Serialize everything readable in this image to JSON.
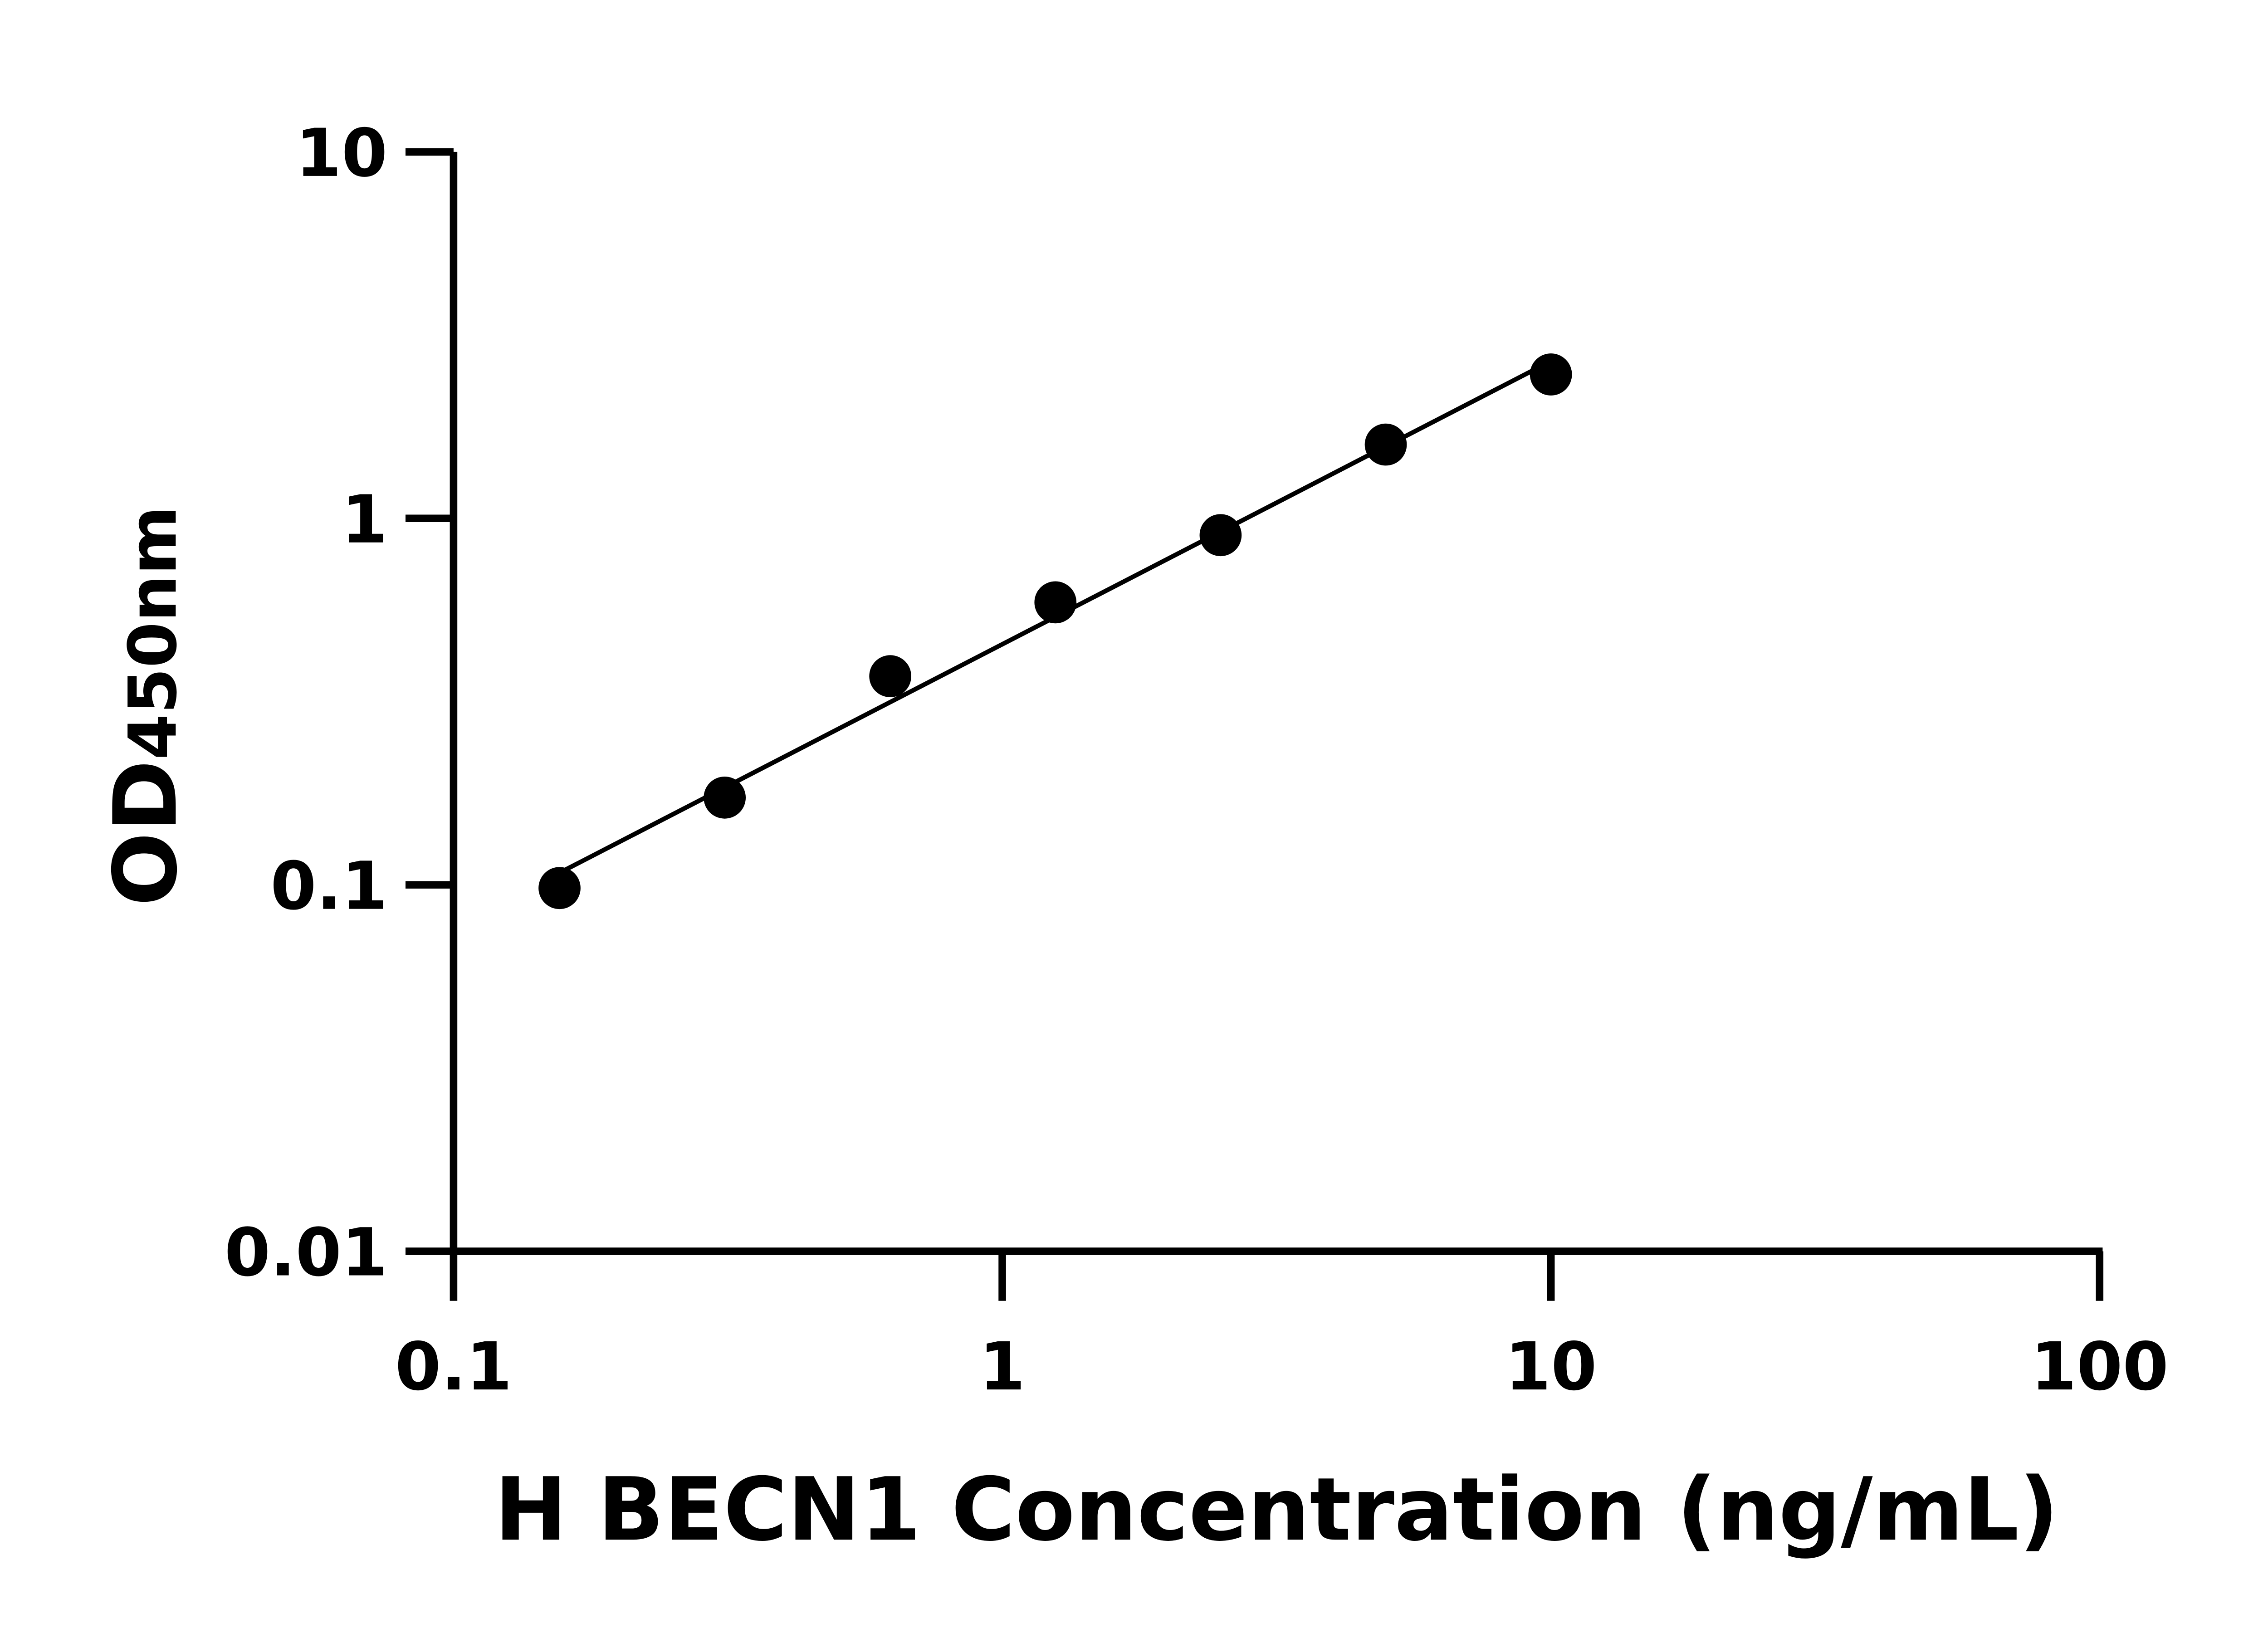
{
  "chart_data": {
    "type": "scatter",
    "title": "",
    "xlabel": "H BECN1 Concentration (ng/mL)",
    "ylabel_main": "OD",
    "ylabel_sub": "450nm",
    "x_scale": "log",
    "y_scale": "log",
    "xlim": [
      0.1,
      100
    ],
    "ylim": [
      0.01,
      10
    ],
    "x_ticks": [
      0.1,
      1,
      10,
      100
    ],
    "x_tick_labels": [
      "0.1",
      "1",
      "10",
      "100"
    ],
    "y_ticks": [
      0.01,
      0.1,
      1,
      10
    ],
    "y_tick_labels": [
      "0.01",
      "0.1",
      "1",
      "10"
    ],
    "grid": false,
    "fit_line": "log-log linear fit",
    "points": [
      {
        "x": 0.156,
        "y": 0.098
      },
      {
        "x": 0.312,
        "y": 0.173
      },
      {
        "x": 0.625,
        "y": 0.371
      },
      {
        "x": 1.25,
        "y": 0.59
      },
      {
        "x": 2.5,
        "y": 0.9
      },
      {
        "x": 5,
        "y": 1.59
      },
      {
        "x": 10,
        "y": 2.47
      }
    ],
    "color": "#000000"
  }
}
